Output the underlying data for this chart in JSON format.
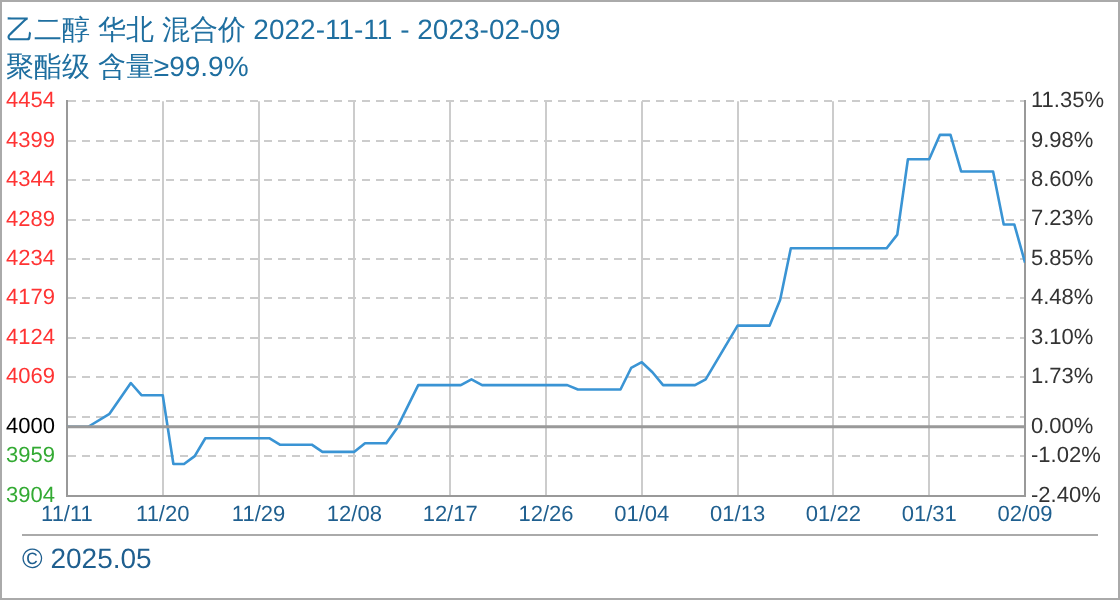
{
  "chart_data": {
    "type": "line",
    "title": "乙二醇 华北 混合价 2022-11-11 - 2023-02-09",
    "subtitle": "聚酯级 含量≥99.9%",
    "x": [
      "2022-11-11",
      "2022-11-13",
      "2022-11-15",
      "2022-11-17",
      "2022-11-18",
      "2022-11-20",
      "2022-11-21",
      "2022-11-22",
      "2022-11-23",
      "2022-11-24",
      "2022-11-30",
      "2022-12-01",
      "2022-12-04",
      "2022-12-05",
      "2022-12-08",
      "2022-12-09",
      "2022-12-11",
      "2022-12-12",
      "2022-12-14",
      "2022-12-18",
      "2022-12-19",
      "2022-12-20",
      "2022-12-28",
      "2022-12-29",
      "2023-01-02",
      "2023-01-03",
      "2023-01-04",
      "2023-01-05",
      "2023-01-06",
      "2023-01-09",
      "2023-01-10",
      "2023-01-13",
      "2023-01-16",
      "2023-01-17",
      "2023-01-18",
      "2023-01-27",
      "2023-01-28",
      "2023-01-29",
      "2023-01-31",
      "2023-02-01",
      "2023-02-02",
      "2023-02-03",
      "2023-02-06",
      "2023-02-07",
      "2023-02-08",
      "2023-02-09"
    ],
    "series": [
      {
        "color": "#3a94d4",
        "values": [
          4000,
          4000,
          4018,
          4061,
          4044,
          4044,
          3948,
          3948,
          3959,
          3984,
          3984,
          3975,
          3975,
          3965,
          3965,
          3977,
          3977,
          3998,
          4058,
          4058,
          4066,
          4058,
          4058,
          4052,
          4052,
          4082,
          4090,
          4076,
          4058,
          4058,
          4066,
          4141,
          4141,
          4177,
          4249,
          4249,
          4268,
          4373,
          4373,
          4407,
          4407,
          4356,
          4356,
          4282,
          4282,
          4229
        ]
      }
    ],
    "xlim": [
      "2022-11-11",
      "2023-02-09"
    ],
    "xticks": [
      {
        "value": "2022-11-11",
        "label": "11/11"
      },
      {
        "value": "2022-11-20",
        "label": "11/20"
      },
      {
        "value": "2022-11-29",
        "label": "11/29"
      },
      {
        "value": "2022-12-08",
        "label": "12/08"
      },
      {
        "value": "2022-12-17",
        "label": "12/17"
      },
      {
        "value": "2022-12-26",
        "label": "12/26"
      },
      {
        "value": "2023-01-04",
        "label": "01/04"
      },
      {
        "value": "2023-01-13",
        "label": "01/13"
      },
      {
        "value": "2023-01-22",
        "label": "01/22"
      },
      {
        "value": "2023-01-31",
        "label": "01/31"
      },
      {
        "value": "2023-02-09",
        "label": "02/09"
      }
    ],
    "ylim": [
      3904,
      4454
    ],
    "yticks": [
      3904,
      3959,
      4000,
      {
        "value": 4014,
        "label": null
      },
      4069,
      4124,
      4179,
      4234,
      4289,
      4344,
      4399,
      4454
    ],
    "y2lim": [
      -2.4,
      11.35
    ],
    "y2ticks": [
      {
        "value": -2.4,
        "label": "-2.40%"
      },
      {
        "value": -1.02,
        "label": "-1.02%"
      },
      {
        "value": 0,
        "label": "0.00%"
      },
      {
        "value": 1.73,
        "label": "1.73%"
      },
      {
        "value": 3.1,
        "label": "3.10%"
      },
      {
        "value": 4.48,
        "label": "4.48%"
      },
      {
        "value": 5.85,
        "label": "5.85%"
      },
      {
        "value": 7.23,
        "label": "7.23%"
      },
      {
        "value": 8.6,
        "label": "8.60%"
      },
      {
        "value": 9.98,
        "label": "9.98%"
      },
      {
        "value": 11.35,
        "label": "11.35%"
      }
    ],
    "ref_lines": [
      {
        "axis": "y",
        "value": 4000,
        "color": "#999999"
      }
    ],
    "grid": true,
    "legend": false,
    "marker": "none",
    "line_style": "solid",
    "annotations": [
      "© 2025.05"
    ]
  }
}
